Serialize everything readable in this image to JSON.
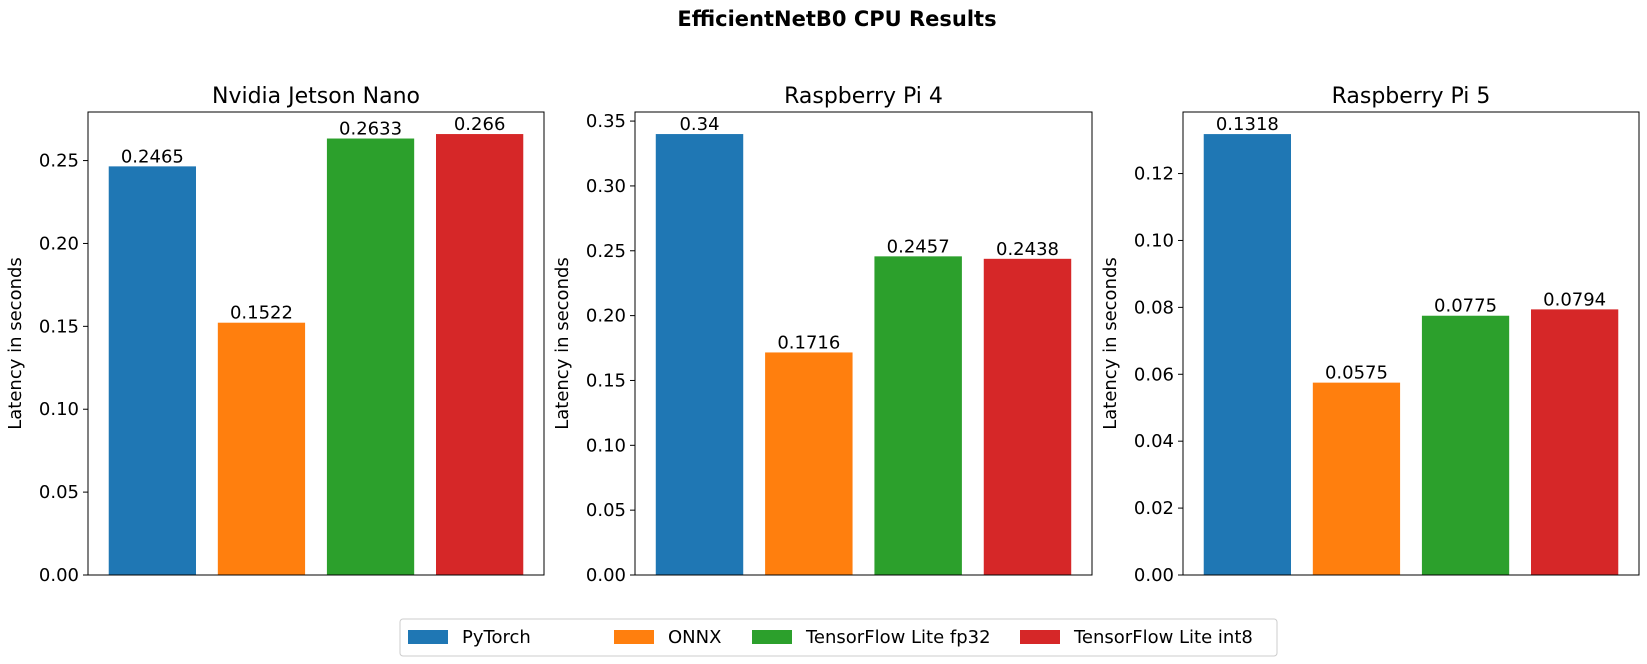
{
  "figure": {
    "title": "EfficientNetB0 CPU Results"
  },
  "legend": {
    "placement": "bottom-center",
    "entries": [
      {
        "label": "PyTorch",
        "color": "#1f77b4"
      },
      {
        "label": "ONNX",
        "color": "#ff7f0e"
      },
      {
        "label": "TensorFlow Lite fp32",
        "color": "#2ca02c"
      },
      {
        "label": "TensorFlow Lite int8",
        "color": "#d62728"
      }
    ]
  },
  "chart_data": [
    {
      "type": "bar",
      "title": "Nvidia Jetson Nano",
      "xlabel": "",
      "ylabel": "Latency in seconds",
      "categories": [
        "PyTorch",
        "ONNX",
        "TensorFlow Lite fp32",
        "TensorFlow Lite int8"
      ],
      "values": [
        0.2465,
        0.1522,
        0.2633,
        0.266
      ],
      "value_labels": [
        "0.2465",
        "0.1522",
        "0.2633",
        "0.266"
      ],
      "colors": [
        "#1f77b4",
        "#ff7f0e",
        "#2ca02c",
        "#d62728"
      ],
      "ylim": [
        0,
        0.2793
      ],
      "yticks": [
        0.0,
        0.05,
        0.1,
        0.15,
        0.2,
        0.25
      ],
      "ytick_labels": [
        "0.00",
        "0.05",
        "0.10",
        "0.15",
        "0.20",
        "0.25"
      ],
      "grid": false
    },
    {
      "type": "bar",
      "title": "Raspberry Pi 4",
      "xlabel": "",
      "ylabel": "Latency in seconds",
      "categories": [
        "PyTorch",
        "ONNX",
        "TensorFlow Lite fp32",
        "TensorFlow Lite int8"
      ],
      "values": [
        0.34,
        0.1716,
        0.2457,
        0.2438
      ],
      "value_labels": [
        "0.34",
        "0.1716",
        "0.2457",
        "0.2438"
      ],
      "colors": [
        "#1f77b4",
        "#ff7f0e",
        "#2ca02c",
        "#d62728"
      ],
      "ylim": [
        0,
        0.357
      ],
      "yticks": [
        0.0,
        0.05,
        0.1,
        0.15,
        0.2,
        0.25,
        0.3,
        0.35
      ],
      "ytick_labels": [
        "0.00",
        "0.05",
        "0.10",
        "0.15",
        "0.20",
        "0.25",
        "0.30",
        "0.35"
      ],
      "grid": false
    },
    {
      "type": "bar",
      "title": "Raspberry Pi 5",
      "xlabel": "",
      "ylabel": "Latency in seconds",
      "categories": [
        "PyTorch",
        "ONNX",
        "TensorFlow Lite fp32",
        "TensorFlow Lite int8"
      ],
      "values": [
        0.1318,
        0.0575,
        0.0775,
        0.0794
      ],
      "value_labels": [
        "0.1318",
        "0.0575",
        "0.0775",
        "0.0794"
      ],
      "colors": [
        "#1f77b4",
        "#ff7f0e",
        "#2ca02c",
        "#d62728"
      ],
      "ylim": [
        0,
        0.1384
      ],
      "yticks": [
        0.0,
        0.02,
        0.04,
        0.06,
        0.08,
        0.1,
        0.12
      ],
      "ytick_labels": [
        "0.00",
        "0.02",
        "0.04",
        "0.06",
        "0.08",
        "0.10",
        "0.12"
      ],
      "grid": false
    }
  ]
}
